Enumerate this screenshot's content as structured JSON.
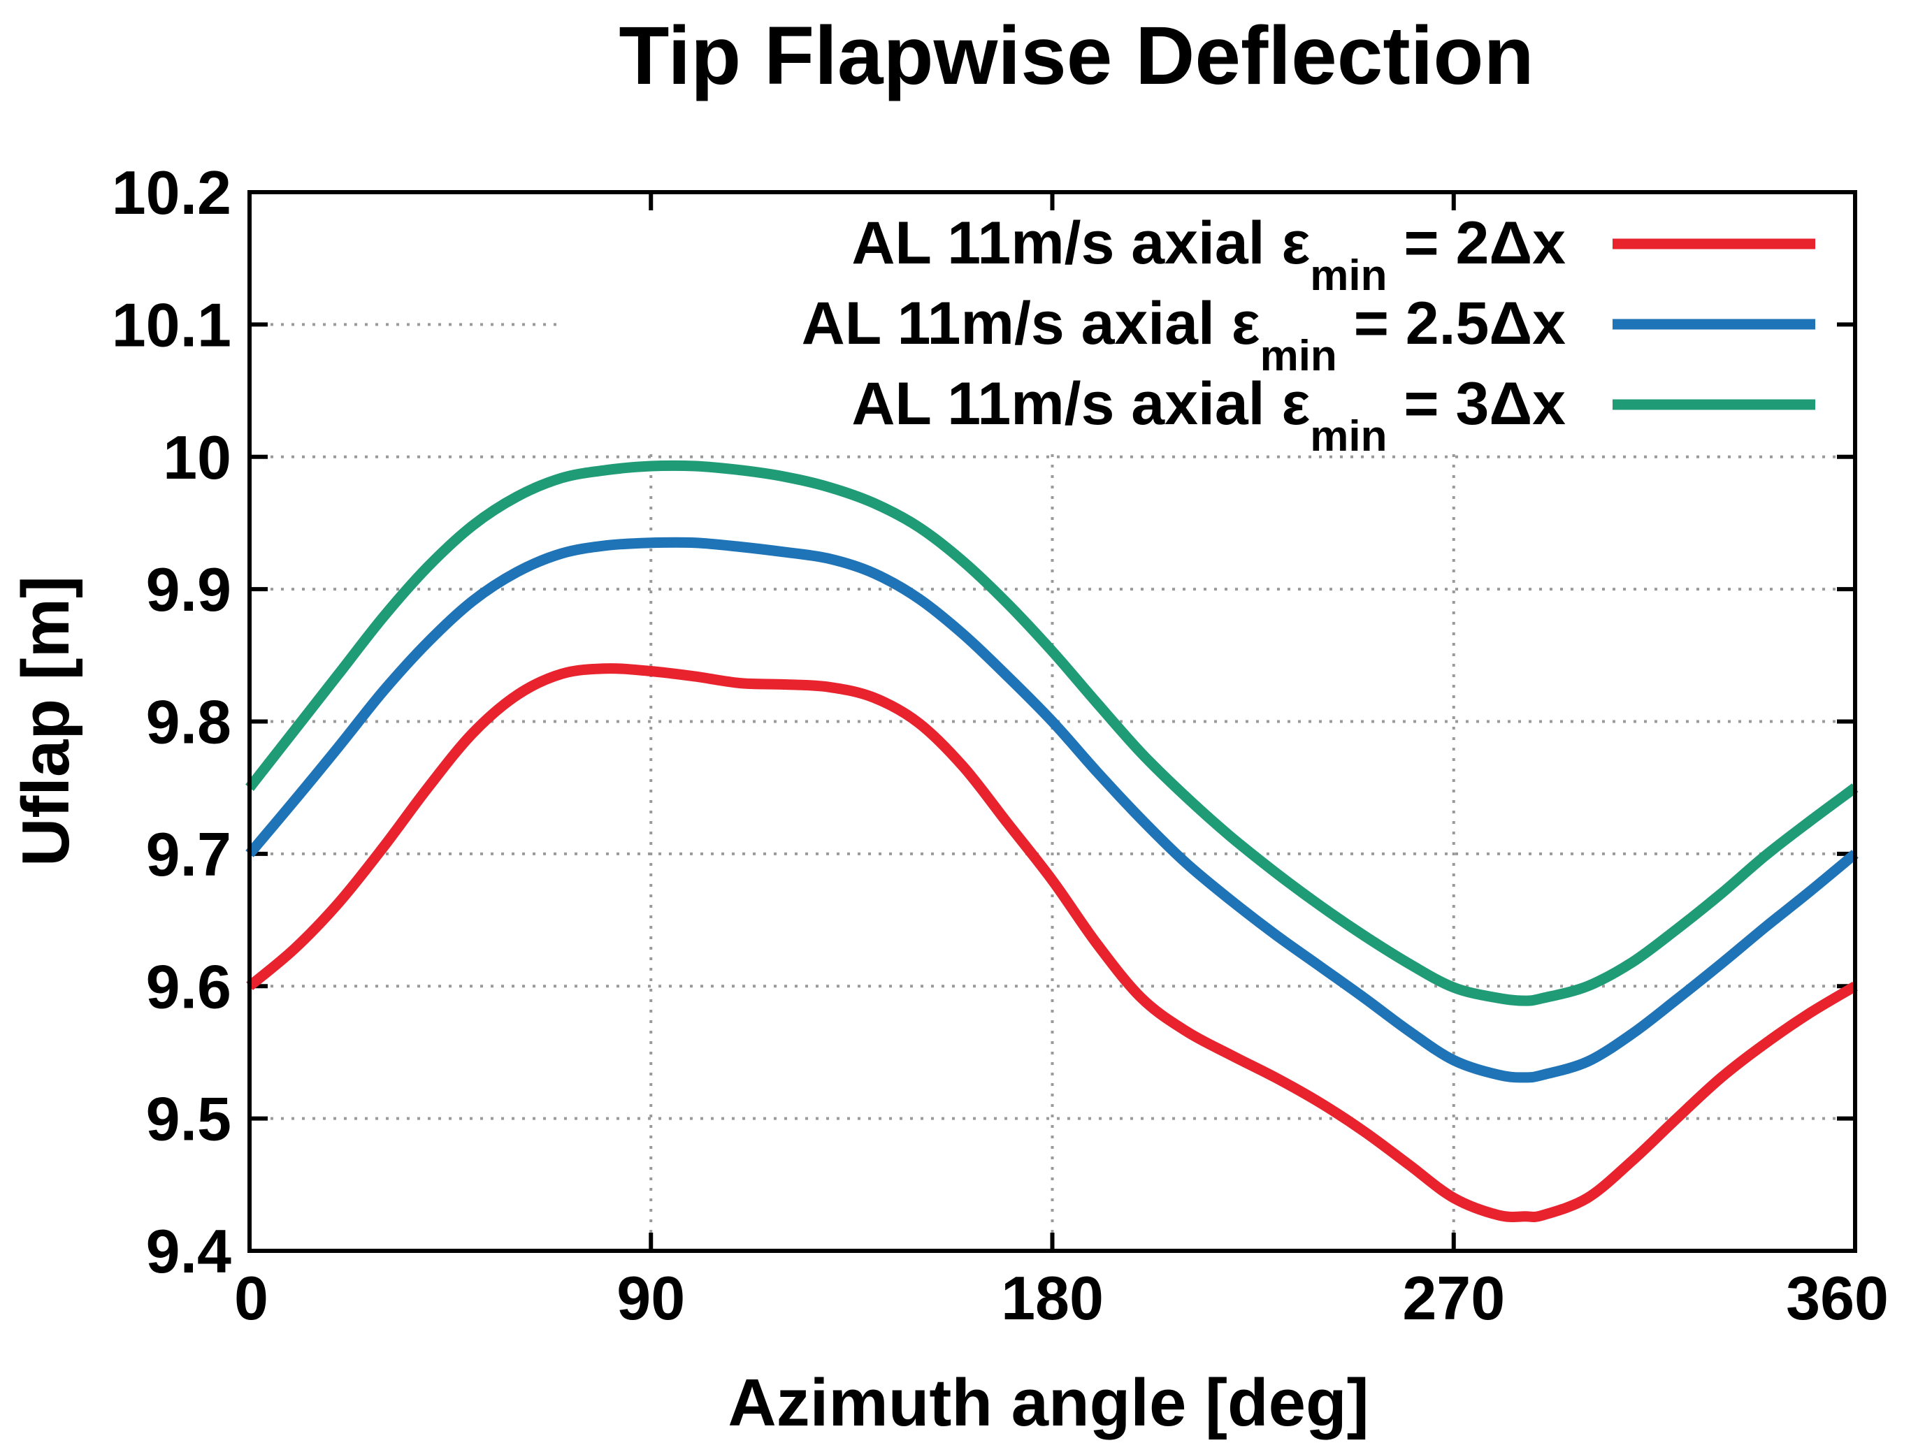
{
  "chart_data": {
    "type": "line",
    "title": "Tip Flapwise Deflection",
    "xlabel": "Azimuth angle [deg]",
    "ylabel": "Uflap [m]",
    "xlim": [
      0,
      360
    ],
    "ylim": [
      9.4,
      10.2
    ],
    "xticks": [
      0,
      90,
      180,
      270,
      360
    ],
    "xtick_labels": [
      "0",
      "90",
      "180",
      "270",
      "360"
    ],
    "yticks": [
      9.4,
      9.5,
      9.6,
      9.7,
      9.8,
      9.9,
      10.0,
      10.1,
      10.2
    ],
    "ytick_labels": [
      "9.4",
      "9.5",
      "9.6",
      "9.7",
      "9.8",
      "9.9",
      "10",
      "10.1",
      "10.2"
    ],
    "grid": true,
    "legend_position": "top-right",
    "series": [
      {
        "name": "AL 11m/s axial εmin = 2Δx",
        "legend_prefix": "AL 11m/s axial ε",
        "legend_sub": "min",
        "legend_suffix": " = 2Δx",
        "color": "#e8232d",
        "x": [
          0,
          10,
          20,
          30,
          40,
          50,
          60,
          70,
          80,
          90,
          100,
          110,
          120,
          130,
          140,
          150,
          160,
          170,
          180,
          190,
          200,
          210,
          220,
          230,
          240,
          250,
          260,
          270,
          280,
          286,
          290,
          300,
          310,
          320,
          330,
          340,
          350,
          360
        ],
        "y": [
          9.6,
          9.628,
          9.663,
          9.705,
          9.75,
          9.791,
          9.82,
          9.836,
          9.84,
          9.838,
          9.834,
          9.829,
          9.828,
          9.826,
          9.818,
          9.799,
          9.766,
          9.723,
          9.68,
          9.632,
          9.591,
          9.566,
          9.548,
          9.531,
          9.512,
          9.49,
          9.465,
          9.44,
          9.427,
          9.426,
          9.427,
          9.44,
          9.468,
          9.5,
          9.531,
          9.557,
          9.58,
          9.6
        ]
      },
      {
        "name": "AL 11m/s axial εmin = 2.5Δx",
        "legend_prefix": "AL 11m/s axial ε",
        "legend_sub": "min",
        "legend_suffix": " = 2.5Δx",
        "color": "#1f73b7",
        "x": [
          0,
          10,
          20,
          30,
          40,
          50,
          60,
          70,
          80,
          90,
          100,
          110,
          120,
          130,
          140,
          150,
          160,
          170,
          180,
          190,
          200,
          210,
          220,
          230,
          240,
          250,
          260,
          270,
          280,
          286,
          290,
          300,
          310,
          320,
          330,
          340,
          350,
          360
        ],
        "y": [
          9.7,
          9.74,
          9.781,
          9.823,
          9.86,
          9.891,
          9.913,
          9.927,
          9.933,
          9.935,
          9.935,
          9.932,
          9.928,
          9.923,
          9.912,
          9.893,
          9.866,
          9.834,
          9.8,
          9.762,
          9.726,
          9.693,
          9.665,
          9.639,
          9.615,
          9.591,
          9.566,
          9.544,
          9.533,
          9.531,
          9.533,
          9.543,
          9.564,
          9.59,
          9.617,
          9.645,
          9.672,
          9.7
        ]
      },
      {
        "name": "AL 11m/s axial εmin = 3Δx",
        "legend_prefix": "AL 11m/s axial ε",
        "legend_sub": "min",
        "legend_suffix": " = 3Δx",
        "color": "#1f9b76",
        "x": [
          0,
          10,
          20,
          30,
          40,
          50,
          60,
          70,
          80,
          90,
          100,
          110,
          120,
          130,
          140,
          150,
          160,
          170,
          180,
          190,
          200,
          210,
          220,
          230,
          240,
          250,
          260,
          270,
          280,
          286,
          290,
          300,
          310,
          320,
          330,
          340,
          350,
          360
        ],
        "y": [
          9.75,
          9.793,
          9.836,
          9.879,
          9.917,
          9.948,
          9.97,
          9.984,
          9.99,
          9.993,
          9.993,
          9.99,
          9.985,
          9.977,
          9.965,
          9.947,
          9.921,
          9.889,
          9.853,
          9.814,
          9.776,
          9.743,
          9.713,
          9.686,
          9.661,
          9.638,
          9.617,
          9.599,
          9.591,
          9.589,
          9.591,
          9.6,
          9.618,
          9.643,
          9.67,
          9.699,
          9.725,
          9.75
        ]
      }
    ]
  }
}
